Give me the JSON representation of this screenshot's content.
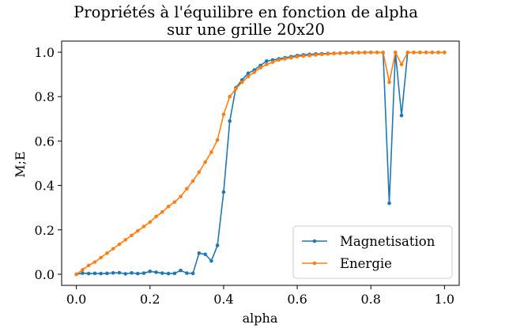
{
  "chart_data": {
    "type": "line",
    "title_line1": "Propriétés à l'équilibre en fonction de alpha",
    "title_line2": "sur une grille 20x20",
    "xlabel": "alpha",
    "ylabel": "M;E",
    "xlim": [
      -0.04,
      1.04
    ],
    "ylim": [
      -0.05,
      1.05
    ],
    "xticks": [
      0.0,
      0.2,
      0.4,
      0.6,
      0.8,
      1.0
    ],
    "xtick_labels": [
      "0.0",
      "0.2",
      "0.4",
      "0.6",
      "0.8",
      "1.0"
    ],
    "yticks": [
      0.0,
      0.2,
      0.4,
      0.6,
      0.8,
      1.0
    ],
    "ytick_labels": [
      "0.0",
      "0.2",
      "0.4",
      "0.6",
      "0.8",
      "1.0"
    ],
    "grid": false,
    "legend_position": "lower-right",
    "x": [
      0.0,
      0.0167,
      0.0333,
      0.05,
      0.0667,
      0.0833,
      0.1,
      0.1167,
      0.1333,
      0.15,
      0.1667,
      0.1833,
      0.2,
      0.2167,
      0.2333,
      0.25,
      0.2667,
      0.2833,
      0.3,
      0.3167,
      0.3333,
      0.35,
      0.3667,
      0.3833,
      0.4,
      0.4167,
      0.4333,
      0.45,
      0.4667,
      0.4833,
      0.5,
      0.5167,
      0.5333,
      0.55,
      0.5667,
      0.5833,
      0.6,
      0.6167,
      0.6333,
      0.65,
      0.6667,
      0.6833,
      0.7,
      0.7167,
      0.7333,
      0.75,
      0.7667,
      0.7833,
      0.8,
      0.8167,
      0.8333,
      0.85,
      0.8667,
      0.8833,
      0.9,
      0.9167,
      0.9333,
      0.95,
      0.9667,
      0.9833,
      1.0
    ],
    "series": [
      {
        "name": "Magnetisation",
        "color": "#1f77b4",
        "values": [
          0.0,
          0.005,
          0.003,
          0.004,
          0.003,
          0.004,
          0.006,
          0.007,
          0.002,
          0.006,
          0.003,
          0.005,
          0.013,
          0.009,
          0.005,
          0.003,
          0.004,
          0.017,
          0.005,
          0.004,
          0.095,
          0.09,
          0.06,
          0.13,
          0.37,
          0.69,
          0.84,
          0.875,
          0.905,
          0.92,
          0.94,
          0.96,
          0.965,
          0.97,
          0.975,
          0.98,
          0.985,
          0.988,
          0.99,
          0.992,
          0.993,
          0.994,
          0.995,
          0.996,
          0.997,
          0.998,
          0.998,
          0.999,
          0.999,
          0.999,
          0.998,
          0.32,
          0.999,
          0.715,
          0.999,
          0.999,
          0.999,
          0.999,
          0.999,
          0.999,
          0.999
        ]
      },
      {
        "name": "Energie",
        "color": "#ff7f0e",
        "values": [
          0.0,
          0.02,
          0.04,
          0.055,
          0.075,
          0.095,
          0.115,
          0.135,
          0.155,
          0.175,
          0.195,
          0.215,
          0.235,
          0.26,
          0.28,
          0.305,
          0.325,
          0.35,
          0.385,
          0.42,
          0.46,
          0.505,
          0.55,
          0.605,
          0.72,
          0.8,
          0.835,
          0.865,
          0.89,
          0.91,
          0.93,
          0.945,
          0.955,
          0.965,
          0.97,
          0.975,
          0.98,
          0.983,
          0.985,
          0.988,
          0.99,
          0.992,
          0.994,
          0.995,
          0.996,
          0.997,
          0.998,
          0.998,
          0.999,
          0.999,
          0.999,
          0.865,
          0.999,
          0.945,
          0.999,
          0.999,
          0.999,
          0.999,
          0.999,
          0.999,
          0.999
        ]
      }
    ]
  }
}
